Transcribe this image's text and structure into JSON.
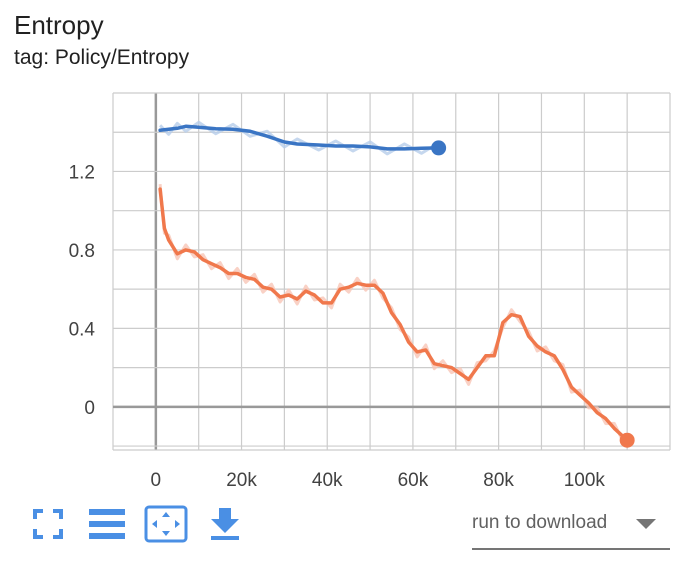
{
  "header": {
    "title": "Entropy",
    "subtitle": "tag: Policy/Entropy"
  },
  "toolbar": {
    "buttons": [
      {
        "name": "fullscreen-icon"
      },
      {
        "name": "legend-list-icon"
      },
      {
        "name": "fit-domain-icon"
      },
      {
        "name": "download-icon"
      }
    ],
    "run_select": {
      "value": "run to download"
    }
  },
  "colors": {
    "blue_series": "#3a75c4",
    "orange_series": "#f0784c",
    "orange_raw": "#f8c6b6",
    "blue_raw": "#b7cdea",
    "icon_blue": "#4a8fe4",
    "grid": "#cccccc",
    "axis_zero": "#999999"
  },
  "chart_data": {
    "type": "line",
    "title": "",
    "xlabel": "",
    "ylabel": "",
    "xlim": [
      -10000,
      120000
    ],
    "ylim": [
      -0.22,
      1.6
    ],
    "x_ticks": [
      0,
      20000,
      40000,
      60000,
      80000,
      100000
    ],
    "x_tick_labels": [
      "0",
      "20k",
      "40k",
      "60k",
      "80k",
      "100k"
    ],
    "y_ticks": [
      0,
      0.4,
      0.8,
      1.2
    ],
    "y_tick_labels": [
      "0",
      "0.4",
      "0.8",
      "1.2"
    ],
    "grid": true,
    "series": [
      {
        "color": "#3a75c4",
        "x": [
          1000,
          3000,
          5000,
          7000,
          10000,
          14000,
          18000,
          22000,
          26000,
          30000,
          33000,
          38000,
          42000,
          46000,
          50000,
          54000,
          58000,
          62000,
          66000
        ],
        "y": [
          1.41,
          1.415,
          1.42,
          1.43,
          1.425,
          1.418,
          1.415,
          1.405,
          1.38,
          1.35,
          1.34,
          1.335,
          1.33,
          1.33,
          1.325,
          1.315,
          1.315,
          1.318,
          1.32
        ],
        "end_marker": true
      },
      {
        "color": "#f0784c",
        "x": [
          1000,
          2000,
          3000,
          5000,
          7000,
          9000,
          11000,
          13000,
          15000,
          17000,
          19000,
          21000,
          23000,
          25000,
          27000,
          29000,
          31000,
          33000,
          35000,
          37000,
          39000,
          41000,
          43000,
          45000,
          47000,
          49000,
          51000,
          53000,
          55000,
          57000,
          59000,
          61000,
          63000,
          65000,
          67000,
          69000,
          71000,
          73000,
          75000,
          77000,
          79000,
          81000,
          83000,
          85000,
          87000,
          89000,
          91000,
          93000,
          95000,
          97000,
          99000,
          101000,
          103000,
          105000,
          107000,
          109000,
          110000
        ],
        "y": [
          1.11,
          0.91,
          0.85,
          0.78,
          0.8,
          0.79,
          0.75,
          0.73,
          0.71,
          0.68,
          0.68,
          0.66,
          0.65,
          0.61,
          0.6,
          0.56,
          0.57,
          0.55,
          0.59,
          0.57,
          0.53,
          0.53,
          0.6,
          0.61,
          0.63,
          0.62,
          0.62,
          0.58,
          0.48,
          0.42,
          0.33,
          0.28,
          0.29,
          0.22,
          0.21,
          0.2,
          0.17,
          0.14,
          0.2,
          0.26,
          0.26,
          0.43,
          0.47,
          0.46,
          0.36,
          0.31,
          0.28,
          0.26,
          0.19,
          0.1,
          0.06,
          0.02,
          -0.03,
          -0.06,
          -0.11,
          -0.15,
          -0.17
        ],
        "end_marker": true
      }
    ]
  }
}
